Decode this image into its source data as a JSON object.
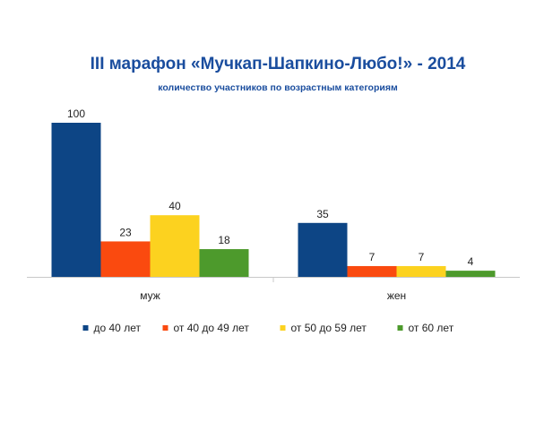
{
  "chart_data": {
    "type": "bar",
    "title": "III марафон «Мучкап-Шапкино-Любо!» - 2014",
    "subtitle": "количество участников по возрастным категориям",
    "categories": [
      "муж",
      "жен"
    ],
    "series": [
      {
        "name": "до 40 лет",
        "color": "#0d4585",
        "values": [
          100,
          35
        ]
      },
      {
        "name": "от 40 до 49 лет",
        "color": "#fa4a0f",
        "values": [
          23,
          7
        ]
      },
      {
        "name": "от 50 до 59 лет",
        "color": "#fcd21f",
        "values": [
          40,
          7
        ]
      },
      {
        "name": "от 60 лет",
        "color": "#4d9a2c",
        "values": [
          18,
          4
        ]
      }
    ],
    "ylim": [
      0,
      100
    ],
    "grid": false,
    "legend": "bottom",
    "colors": {
      "title": "#1a4d9e",
      "axis": "#c8c8c8",
      "text": "#222222"
    }
  }
}
